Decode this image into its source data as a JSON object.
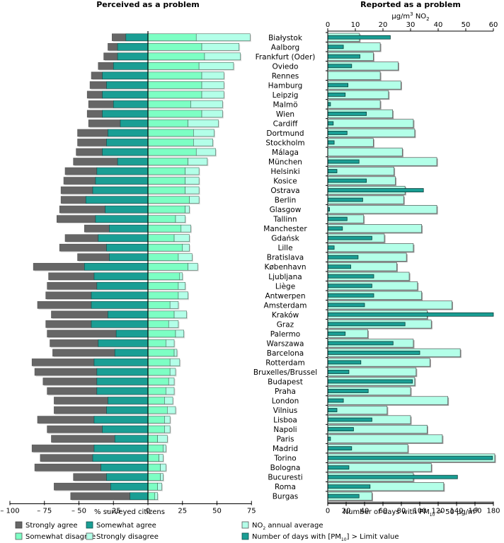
{
  "chart_data": [
    {
      "type": "bar",
      "orientation": "horizontal-diverging-stacked",
      "title": "Perceived as a problem",
      "xlabel": "% surveyed citizens",
      "xlim": [
        -100,
        75
      ],
      "xticks": [
        -100,
        -75,
        -50,
        -25,
        0,
        25,
        50,
        75
      ],
      "xtick_labels": [
        "– 100",
        "– 75",
        "– 50",
        "– 25",
        "0",
        "25",
        "50",
        "75"
      ],
      "categories": [
        "Białystok",
        "Aalborg",
        "Frankfurt (Oder)",
        "Oviedo",
        "Rennes",
        "Hamburg",
        "Leipzig",
        "Malmö",
        "Wien",
        "Cardiff",
        "Dortmund",
        "Stockholm",
        "Málaga",
        "München",
        "Helsinki",
        "Kosice",
        "Ostrava",
        "Berlin",
        "Glasgow",
        "Tallinn",
        "Manchester",
        "Gdańsk",
        "Lille",
        "Bratislava",
        "København",
        "Ljubljana",
        "Liège",
        "Antwerpen",
        "Amsterdam",
        "Kraków",
        "Graz",
        "Palermo",
        "Warszawa",
        "Barcelona",
        "Rotterdam",
        "Bruxelles/Brussel",
        "Budapest",
        "Praha",
        "London",
        "Vilnius",
        "Lisboa",
        "Napoli",
        "Paris",
        "Madrid",
        "Torino",
        "Bologna",
        "Bucuresti",
        "Roma",
        "Burgas"
      ],
      "series": [
        {
          "name": "Strongly agree",
          "side": "negative",
          "color": "#666666",
          "values": [
            10,
            7,
            10,
            11,
            8,
            12,
            11,
            18,
            11,
            23,
            22,
            21,
            19,
            32,
            23,
            23,
            23,
            18,
            33,
            28,
            18,
            24,
            34,
            23,
            37,
            33,
            36,
            33,
            39,
            41,
            33,
            50,
            35,
            45,
            45,
            45,
            39,
            36,
            39,
            38,
            41,
            40,
            46,
            45,
            38,
            48,
            24,
            41,
            43
          ]
        },
        {
          "name": "Somewhat agree",
          "side": "negative",
          "color": "#1a9e94",
          "values": [
            16,
            22,
            22,
            25,
            33,
            30,
            33,
            25,
            33,
            20,
            29,
            30,
            33,
            22,
            37,
            38,
            40,
            45,
            31,
            38,
            28,
            36,
            30,
            28,
            46,
            39,
            37,
            41,
            41,
            29,
            41,
            23,
            36,
            24,
            39,
            37,
            37,
            37,
            29,
            30,
            39,
            33,
            24,
            39,
            40,
            34,
            30,
            27,
            13
          ]
        },
        {
          "name": "Somewhat disagree",
          "side": "positive",
          "color": "#7dffc4",
          "values": [
            35,
            39,
            41,
            37,
            39,
            39,
            39,
            31,
            39,
            29,
            33,
            33,
            35,
            29,
            27,
            27,
            27,
            30,
            27,
            20,
            24,
            19,
            25,
            22,
            29,
            23,
            22,
            22,
            16,
            19,
            15,
            20,
            13,
            19,
            16,
            16,
            15,
            13,
            12,
            14,
            12,
            12,
            7,
            11,
            8,
            9,
            9,
            7,
            5
          ]
        },
        {
          "name": "Strongly disagree",
          "side": "positive",
          "color": "#b3ffe8",
          "values": [
            39,
            27,
            26,
            25,
            16,
            16,
            16,
            23,
            15,
            22,
            15,
            14,
            14,
            14,
            10,
            10,
            10,
            7,
            3,
            7,
            7,
            11,
            5,
            10,
            7,
            2,
            5,
            7,
            6,
            9,
            7,
            6,
            6,
            2,
            7,
            4,
            4,
            6,
            6,
            6,
            4,
            4,
            7,
            2,
            3,
            4,
            2,
            3,
            2
          ]
        }
      ],
      "legend": {
        "placement": "bottom",
        "entries": [
          "Strongly agree",
          "Somewhat agree",
          "Somewhat disagree",
          "Strongly disagree"
        ]
      }
    },
    {
      "type": "bar",
      "orientation": "horizontal-overlaid",
      "title": "Reported as a problem",
      "top_axis": {
        "label": "µg/m³ NO₂",
        "range": [
          0,
          60
        ],
        "ticks": [
          0,
          10,
          20,
          30,
          40,
          50,
          60
        ]
      },
      "bottom_axis": {
        "label": "Number of days with PM₁₀ > 50 µg/m³",
        "range": [
          0,
          180
        ],
        "ticks": [
          0,
          20,
          40,
          60,
          80,
          100,
          120,
          140,
          160,
          180
        ]
      },
      "categories": [
        "Białystok",
        "Aalborg",
        "Frankfurt (Oder)",
        "Oviedo",
        "Rennes",
        "Hamburg",
        "Leipzig",
        "Malmö",
        "Wien",
        "Cardiff",
        "Dortmund",
        "Stockholm",
        "Málaga",
        "München",
        "Helsinki",
        "Kosice",
        "Ostrava",
        "Berlin",
        "Glasgow",
        "Tallinn",
        "Manchester",
        "Gdańsk",
        "Lille",
        "Bratislava",
        "København",
        "Ljubljana",
        "Liège",
        "Antwerpen",
        "Amsterdam",
        "Kraków",
        "Graz",
        "Palermo",
        "Warszawa",
        "Barcelona",
        "Rotterdam",
        "Bruxelles/Brussel",
        "Budapest",
        "Praha",
        "London",
        "Vilnius",
        "Lisboa",
        "Napoli",
        "Paris",
        "Madrid",
        "Torino",
        "Bologna",
        "Bucuresti",
        "Roma",
        "Burgas"
      ],
      "series": [
        {
          "name": "NO₂ annual average",
          "axis": "top",
          "unit": "µg/m³",
          "color": "#b3ffe8",
          "values": [
            11.5,
            19,
            16.5,
            25.5,
            19,
            26.5,
            22,
            19,
            23.5,
            31,
            31.5,
            16.5,
            27,
            39.5,
            24,
            24.5,
            28,
            27.5,
            39.5,
            13,
            34,
            20.5,
            31,
            28.5,
            25,
            29.5,
            32.5,
            34,
            45,
            36,
            37.5,
            14.5,
            31,
            48,
            37,
            32,
            31.5,
            30,
            43.5,
            21.5,
            30,
            36,
            41.5,
            29,
            60.5,
            37.5,
            31,
            42,
            16
          ]
        },
        {
          "name": "Number of days with [PM₁₀] > Limit value",
          "axis": "bottom",
          "unit": "days",
          "color": "#1a9e94",
          "values": [
            68,
            17,
            35,
            26,
            0,
            22,
            19,
            3,
            42,
            6,
            21,
            7,
            0,
            34,
            10,
            42,
            104,
            38,
            2,
            21,
            16,
            48,
            7,
            33,
            25,
            50,
            48,
            50,
            40,
            180,
            84,
            19,
            71,
            100,
            36,
            23,
            92,
            44,
            17,
            10,
            48,
            28,
            3,
            26,
            179,
            23,
            141,
            46,
            34
          ]
        }
      ],
      "legend": {
        "placement": "bottom",
        "entries": [
          "NO₂ annual average",
          "Number of days with [PM₁₀] > Limit value"
        ]
      }
    }
  ],
  "labels": {
    "left_title": "Perceived as a problem",
    "right_title": "Reported as a problem",
    "left_xlabel": "% surveyed citizens",
    "right_top_unit_main": "µg/m",
    "right_top_unit_sup": "3",
    "right_top_unit_chem": " NO",
    "right_top_unit_sub": "2",
    "right_bottom_label_a": "Number of days with PM",
    "right_bottom_label_sub": "10",
    "right_bottom_label_b": " > 50 µg/m",
    "right_bottom_label_sup": "3",
    "legend_left": [
      "Strongly agree",
      "Somewhat agree",
      "Somewhat disagree",
      "Strongly disagree"
    ],
    "legend_right_1a": "NO",
    "legend_right_1sub": "2",
    "legend_right_1b": " annual average",
    "legend_right_2a": "Number of days with [PM",
    "legend_right_2sub": "10",
    "legend_right_2b": "] > Limit value"
  }
}
